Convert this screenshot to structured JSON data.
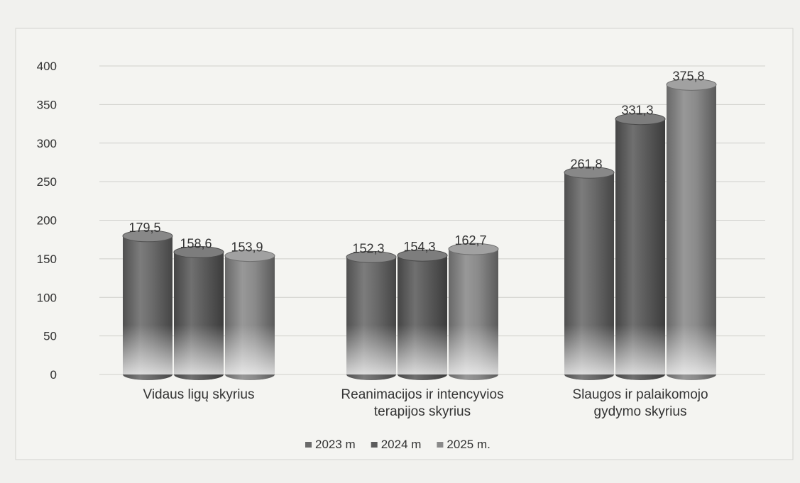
{
  "chart_data": {
    "type": "bar",
    "style": "3d-cylinder",
    "title": "",
    "xlabel": "",
    "ylabel": "",
    "ylim": [
      0,
      400
    ],
    "yticks": [
      0,
      50,
      100,
      150,
      200,
      250,
      300,
      350,
      400
    ],
    "grid": true,
    "legend_position": "bottom",
    "categories": [
      [
        "Vidaus ligų skyrius"
      ],
      [
        "Reanimacijos ir intencyvios",
        "terapijos skyrius"
      ],
      [
        "Slaugos ir palaikomojo",
        "gydymo skyrius"
      ]
    ],
    "series": [
      {
        "name": "2023 m",
        "values": [
          179.5,
          152.3,
          261.8
        ],
        "labels": [
          "179,5",
          "152,3",
          "261,8"
        ],
        "color": "#6a6a6a"
      },
      {
        "name": "2024 m",
        "values": [
          158.6,
          154.3,
          331.3
        ],
        "labels": [
          "158,6",
          "154,3",
          "331,3"
        ],
        "color": "#5c5c5c"
      },
      {
        "name": "2025 m.",
        "values": [
          153.9,
          162.7,
          375.8
        ],
        "labels": [
          "153,9",
          "162,7",
          "375,8"
        ],
        "color": "#8a8a8a"
      }
    ]
  }
}
